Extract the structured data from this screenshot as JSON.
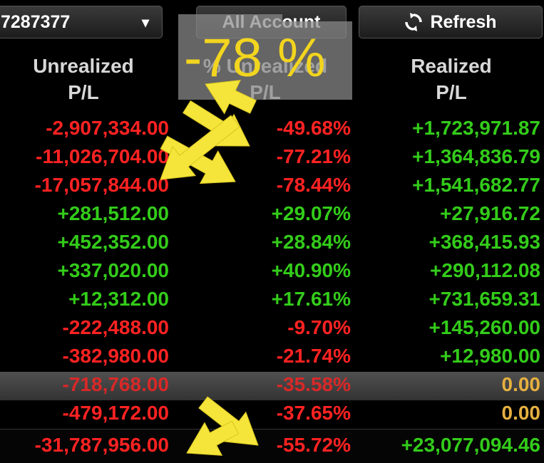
{
  "toolbar": {
    "account": "7287377",
    "dropdown_icon": "▾",
    "all_account": "All Account",
    "refresh": "Refresh"
  },
  "columns": [
    [
      "Unrealized",
      "P/L"
    ],
    [
      "% Unrealized",
      "P/L"
    ],
    [
      "Realized",
      "P/L"
    ]
  ],
  "rows": [
    [
      "-2,907,334.00",
      "-49.68%",
      "+1,723,971.87"
    ],
    [
      "-11,026,704.00",
      "-77.21%",
      "+1,364,836.79"
    ],
    [
      "-17,057,844.00",
      "-78.44%",
      "+1,541,682.77"
    ],
    [
      "+281,512.00",
      "+29.07%",
      "+27,916.72"
    ],
    [
      "+452,352.00",
      "+28.84%",
      "+368,415.93"
    ],
    [
      "+337,020.00",
      "+40.90%",
      "+290,112.08"
    ],
    [
      "+12,312.00",
      "+17.61%",
      "+731,659.31"
    ],
    [
      "-222,488.00",
      "-9.70%",
      "+145,260.00"
    ],
    [
      "-382,980.00",
      "-21.74%",
      "+12,980.00"
    ],
    [
      "-718,768.00",
      "-35.58%",
      "0.00"
    ],
    [
      "-479,172.00",
      "-37.65%",
      "0.00"
    ],
    [
      "-31,787,956.00",
      "-55.72%",
      "+23,077,094.46"
    ]
  ],
  "overlay": "-78 %"
}
